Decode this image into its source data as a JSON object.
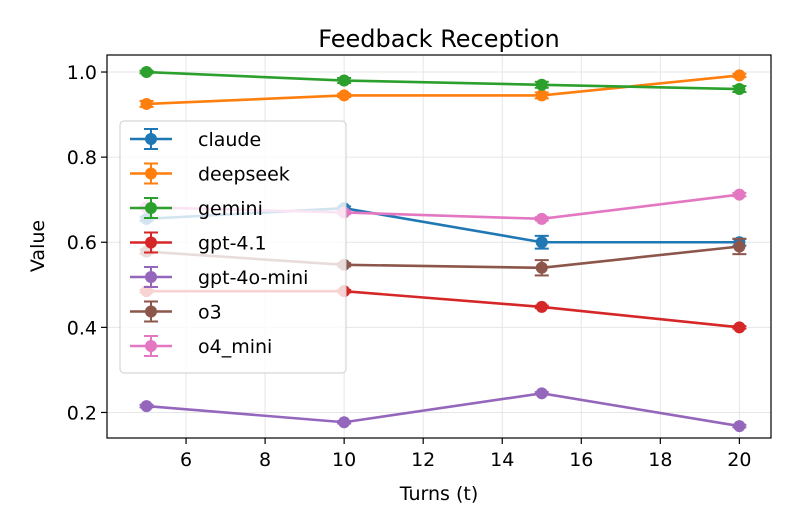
{
  "chart_data": {
    "type": "line",
    "title": "Feedback Reception",
    "xlabel": "Turns (t)",
    "ylabel": "Value",
    "xlim": [
      4.0,
      20.8
    ],
    "ylim": [
      0.14,
      1.04
    ],
    "xticks": [
      6,
      8,
      10,
      12,
      14,
      16,
      18,
      20
    ],
    "xtick_labels": [
      "6",
      "8",
      "10",
      "12",
      "14",
      "16",
      "18",
      "20"
    ],
    "yticks": [
      0.2,
      0.4,
      0.6,
      0.8,
      1.0
    ],
    "ytick_labels": [
      "0.2",
      "0.4",
      "0.6",
      "0.8",
      "1.0"
    ],
    "grid": true,
    "legend_location": "center-left",
    "x": [
      5,
      10,
      15,
      20
    ],
    "series": [
      {
        "name": "claude",
        "color": "#1f77b4",
        "values": [
          0.655,
          0.68,
          0.6,
          0.6
        ],
        "errors": [
          0.005,
          0.004,
          0.015,
          0.008
        ]
      },
      {
        "name": "deepseek",
        "color": "#ff7f0e",
        "values": [
          0.925,
          0.945,
          0.945,
          0.992
        ],
        "errors": [
          0.007,
          0.004,
          0.007,
          0.004
        ]
      },
      {
        "name": "gemini",
        "color": "#2ca02c",
        "values": [
          1.0,
          0.98,
          0.97,
          0.96
        ],
        "errors": [
          0.003,
          0.006,
          0.007,
          0.007
        ]
      },
      {
        "name": "gpt-4.1",
        "color": "#d62728",
        "values": [
          0.485,
          0.485,
          0.448,
          0.4
        ],
        "errors": [
          0.003,
          0.003,
          0.003,
          0.003
        ]
      },
      {
        "name": "gpt-4o-mini",
        "color": "#9467bd",
        "values": [
          0.215,
          0.177,
          0.245,
          0.168
        ],
        "errors": [
          0.003,
          0.003,
          0.003,
          0.003
        ]
      },
      {
        "name": "o3",
        "color": "#8c564b",
        "values": [
          0.578,
          0.547,
          0.54,
          0.59
        ],
        "errors": [
          0.005,
          0.004,
          0.018,
          0.018
        ]
      },
      {
        "name": "o4_mini",
        "color": "#e377c2",
        "values": [
          0.682,
          0.67,
          0.655,
          0.712
        ],
        "errors": [
          0.004,
          0.004,
          0.004,
          0.004
        ]
      }
    ]
  }
}
